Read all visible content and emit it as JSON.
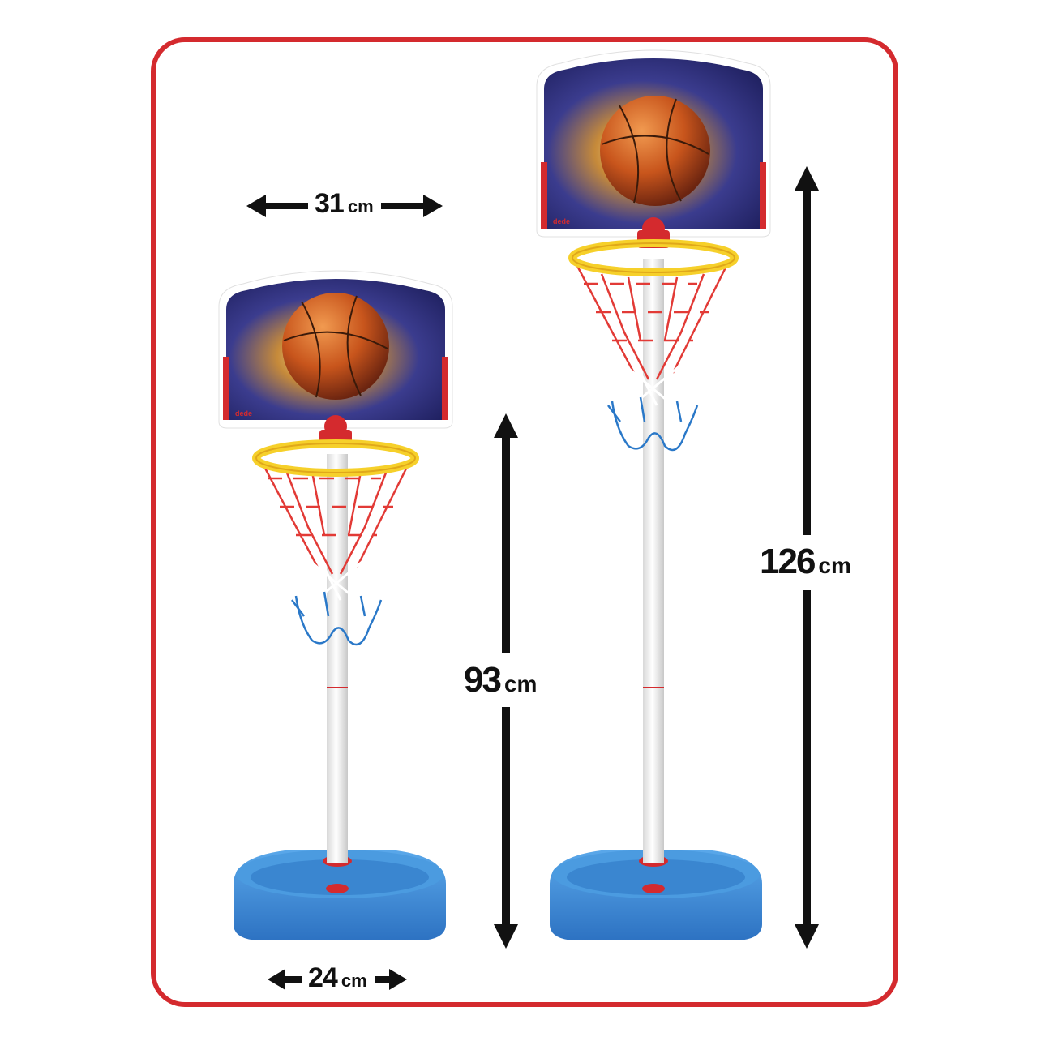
{
  "brand_mark": "dede",
  "dimensions": {
    "backboard_width": {
      "value": "31",
      "unit": "cm"
    },
    "low_height": {
      "value": "93",
      "unit": "cm"
    },
    "high_height": {
      "value": "126",
      "unit": "cm"
    },
    "base_width": {
      "value": "24",
      "unit": "cm"
    }
  },
  "colors": {
    "frame": "#d42a2e",
    "rim": "#f6d02a",
    "base": "#3a8fd8",
    "net_top": "#e23a36",
    "net_bottom": "#2a78c8",
    "ball": "#c8551c"
  }
}
